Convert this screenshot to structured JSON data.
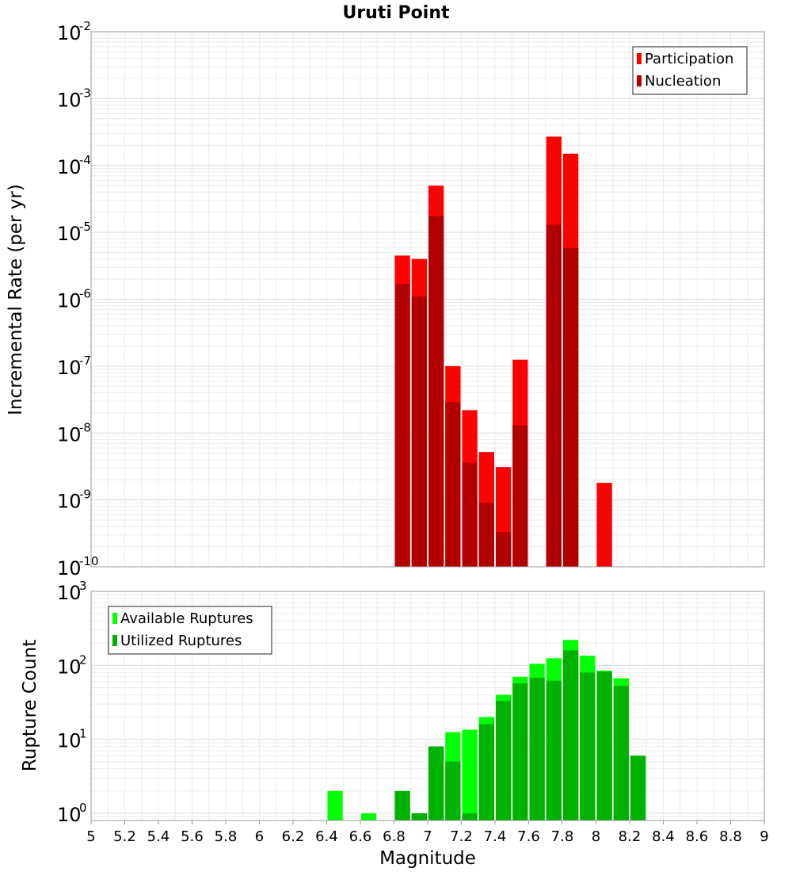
{
  "chart_data": [
    {
      "type": "bar",
      "title": "Uruti Point",
      "ylabel": "Incremental Rate (per yr)",
      "xlabel": "",
      "yscale": "log",
      "ylim": [
        1e-10,
        0.01
      ],
      "xlim": [
        5,
        9
      ],
      "bin_width": 0.1,
      "ytick_exponents": [
        -10,
        -9,
        -8,
        -7,
        -6,
        -5,
        -4,
        -3,
        -2
      ],
      "legend_placement": "top-right",
      "grid": true,
      "colors": {
        "Participation": "#ff0000",
        "Nucleation": "#b20000"
      },
      "series": [
        {
          "name": "Participation",
          "x": [
            6.85,
            6.95,
            7.05,
            7.15,
            7.25,
            7.35,
            7.45,
            7.55,
            7.75,
            7.85,
            8.05
          ],
          "values": [
            4.5e-06,
            4e-06,
            5e-05,
            1e-07,
            2.2e-08,
            5.2e-09,
            3.1e-09,
            1.25e-07,
            0.00027,
            0.00015,
            1.8e-09
          ]
        },
        {
          "name": "Nucleation",
          "x": [
            6.85,
            6.95,
            7.05,
            7.15,
            7.25,
            7.35,
            7.45,
            7.55,
            7.75,
            7.85
          ],
          "values": [
            1.7e-06,
            1.1e-06,
            1.75e-05,
            2.9e-08,
            3.6e-09,
            9e-10,
            3.3e-10,
            1.3e-08,
            1.3e-05,
            5.8e-06
          ]
        }
      ]
    },
    {
      "type": "bar",
      "title": "",
      "ylabel": "Rupture Count",
      "xlabel": "Magnitude",
      "yscale": "log",
      "ylim": [
        0.8,
        1000
      ],
      "xlim": [
        5,
        9
      ],
      "bin_width": 0.1,
      "ytick_exponents": [
        0,
        1,
        2,
        3
      ],
      "xticks": [
        "5",
        "5.2",
        "5.4",
        "5.6",
        "5.8",
        "6",
        "6.2",
        "6.4",
        "6.6",
        "6.8",
        "7",
        "7.2",
        "7.4",
        "7.6",
        "7.8",
        "8",
        "8.2",
        "8.4",
        "8.6",
        "8.8",
        "9"
      ],
      "legend_placement": "top-left",
      "grid": true,
      "colors": {
        "Available Ruptures": "#00ff00",
        "Utilized Ruptures": "#00b200"
      },
      "series": [
        {
          "name": "Available Ruptures",
          "x": [
            6.45,
            6.65,
            6.85,
            6.95,
            7.05,
            7.15,
            7.25,
            7.35,
            7.45,
            7.55,
            7.65,
            7.75,
            7.85,
            7.95,
            8.05,
            8.15,
            8.25
          ],
          "values": [
            2,
            1,
            2,
            1,
            8,
            12.5,
            13.5,
            20,
            40,
            70,
            105,
            125,
            220,
            135,
            85,
            67,
            6
          ]
        },
        {
          "name": "Utilized Ruptures",
          "x": [
            6.85,
            6.95,
            7.05,
            7.15,
            7.25,
            7.35,
            7.45,
            7.55,
            7.65,
            7.75,
            7.85,
            7.95,
            8.05,
            8.15,
            8.25
          ],
          "values": [
            2,
            1,
            8,
            5,
            1,
            16,
            33,
            57,
            68,
            62,
            160,
            80,
            82,
            53,
            6
          ]
        }
      ]
    }
  ]
}
